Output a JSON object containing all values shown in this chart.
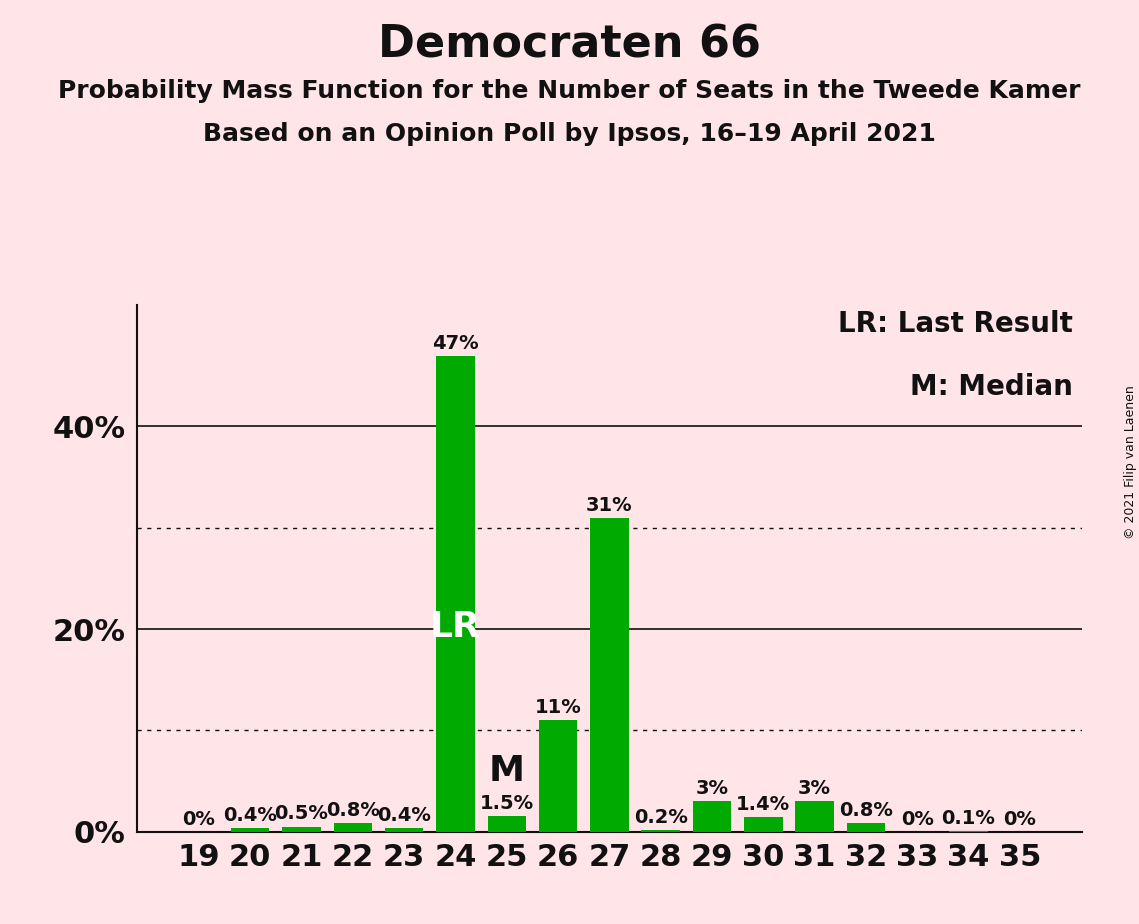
{
  "title": "Democraten 66",
  "subtitle1": "Probability Mass Function for the Number of Seats in the Tweede Kamer",
  "subtitle2": "Based on an Opinion Poll by Ipsos, 16–19 April 2021",
  "copyright": "© 2021 Filip van Laenen",
  "seats": [
    19,
    20,
    21,
    22,
    23,
    24,
    25,
    26,
    27,
    28,
    29,
    30,
    31,
    32,
    33,
    34,
    35
  ],
  "probabilities": [
    0.0,
    0.4,
    0.5,
    0.8,
    0.4,
    47.0,
    1.5,
    11.0,
    31.0,
    0.2,
    3.0,
    1.4,
    3.0,
    0.8,
    0.0,
    0.1,
    0.0
  ],
  "labels": [
    "0%",
    "0.4%",
    "0.5%",
    "0.8%",
    "0.4%",
    "47%",
    "1.5%",
    "11%",
    "31%",
    "0.2%",
    "3%",
    "1.4%",
    "3%",
    "0.8%",
    "0%",
    "0.1%",
    "0%"
  ],
  "bar_color": "#00AA00",
  "background_color": "#FFE4E8",
  "lr_seat": 24,
  "median_seat": 25,
  "ylim": [
    0,
    52
  ],
  "yticks_solid": [
    20,
    40
  ],
  "ytick_solid_labels": [
    "20%",
    "40%"
  ],
  "yticks_dotted": [
    10,
    30
  ],
  "ytick_labels_show": {
    "0": "0%",
    "20": "20%",
    "40": "40%"
  },
  "legend_lr": "LR: Last Result",
  "legend_m": "M: Median",
  "title_fontsize": 32,
  "subtitle_fontsize": 18,
  "axis_fontsize": 22,
  "bar_label_fontsize": 14,
  "legend_fontsize": 20,
  "copyright_fontsize": 9,
  "lr_label_color": "white",
  "m_label_color": "#111111",
  "lr_label_fontsize": 26,
  "m_label_fontsize": 26
}
